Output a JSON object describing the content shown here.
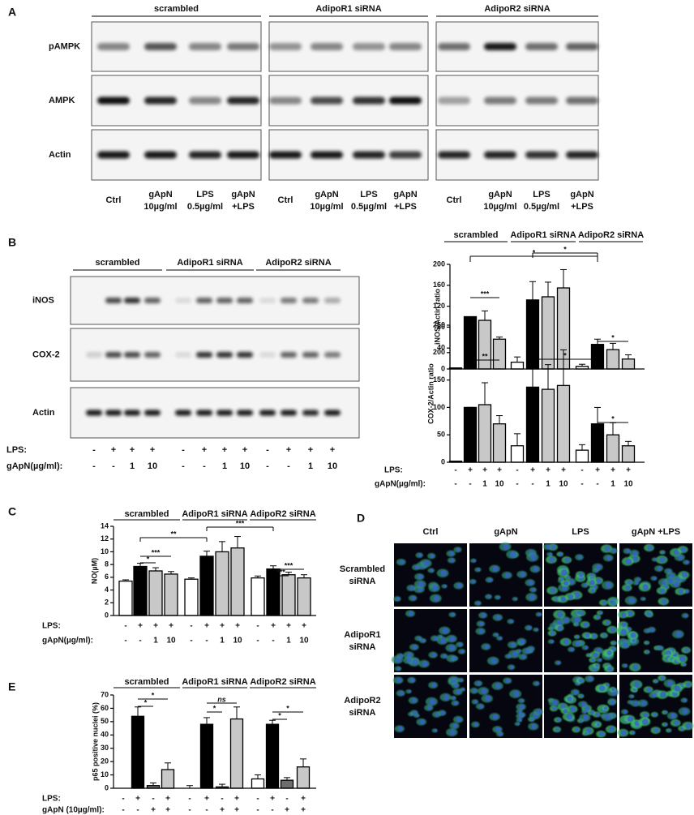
{
  "figure": {
    "panel_a": {
      "label": "A",
      "groups": [
        "scrambled",
        "AdipoR1 siRNA",
        "AdipoR2 siRNA"
      ],
      "rows": [
        "pAMPK",
        "AMPK",
        "Actin"
      ],
      "lanes": [
        [
          [
            "Ctrl"
          ],
          [
            "gApN",
            "10µg/ml"
          ],
          [
            "LPS",
            "0.5µg/ml"
          ],
          [
            "gApN",
            "+LPS"
          ]
        ],
        [
          [
            "Ctrl"
          ],
          [
            "gApN",
            "10µg/ml"
          ],
          [
            "LPS",
            "0.5µg/ml"
          ],
          [
            "gApN",
            "+LPS"
          ]
        ],
        [
          [
            "Ctrl"
          ],
          [
            "gApN",
            "10µg/ml"
          ],
          [
            "LPS",
            "0.5µg/ml"
          ],
          [
            "gApN",
            "+LPS"
          ]
        ]
      ]
    },
    "panel_b": {
      "label": "B",
      "groups": [
        "scrambled",
        "AdipoR1 siRNA",
        "AdipoR2 siRNA"
      ],
      "rows": [
        "iNOS",
        "COX-2",
        "Actin"
      ],
      "treatments": [
        {
          "name": "LPS:",
          "marks": [
            "-",
            "+",
            "+",
            "+",
            "-",
            "+",
            "+",
            "+",
            "-",
            "+",
            "+",
            "+"
          ]
        },
        {
          "name": "gApN(µg/ml):",
          "marks": [
            "-",
            "-",
            "1",
            "10",
            "-",
            "-",
            "1",
            "10",
            "-",
            "-",
            "1",
            "10"
          ]
        }
      ]
    },
    "panel_d": {
      "label": "D",
      "columns": [
        "Ctrl",
        "gApN",
        "LPS",
        "gApN +LPS"
      ],
      "rows": [
        [
          "Scrambled",
          "siRNA"
        ],
        [
          "AdipoR1",
          "siRNA"
        ],
        [
          "AdipoR2",
          "siRNA"
        ]
      ]
    }
  },
  "chart_data": [
    {
      "type": "bar",
      "y_label": "iNOS/Actin ratio",
      "groups": [
        "scrambled",
        "AdipoR1 siRNA",
        "AdipoR2 siRNA"
      ],
      "categories": [
        null,
        null,
        null,
        null,
        null,
        null,
        null,
        null,
        null,
        null,
        null,
        null
      ],
      "values": [
        2,
        100,
        93,
        57,
        13,
        132,
        138,
        155,
        5,
        47,
        37,
        19
      ],
      "errors": [
        0,
        0,
        18,
        4,
        10,
        35,
        28,
        35,
        4,
        10,
        12,
        8
      ],
      "colors": [
        "#ffffff",
        "#000000",
        "#c8c8c8",
        "#c8c8c8",
        "#ffffff",
        "#000000",
        "#c8c8c8",
        "#c8c8c8",
        "#ffffff",
        "#000000",
        "#c8c8c8",
        "#c8c8c8"
      ],
      "ylim": [
        0,
        200
      ],
      "yticks": [
        0,
        40,
        80,
        120,
        160,
        200
      ],
      "annotations": [
        "***",
        "*",
        "*",
        "*"
      ]
    },
    {
      "type": "bar",
      "y_label": "COX-2/Actin ratio",
      "categories": [
        null,
        null,
        null,
        null,
        null,
        null,
        null,
        null,
        null,
        null,
        null,
        null
      ],
      "values": [
        2,
        100,
        105,
        70,
        30,
        137,
        133,
        140,
        22,
        70,
        50,
        30
      ],
      "errors": [
        0,
        0,
        40,
        15,
        22,
        45,
        45,
        65,
        10,
        30,
        22,
        8
      ],
      "colors": [
        "#ffffff",
        "#000000",
        "#c8c8c8",
        "#c8c8c8",
        "#ffffff",
        "#000000",
        "#c8c8c8",
        "#c8c8c8",
        "#ffffff",
        "#000000",
        "#c8c8c8",
        "#c8c8c8"
      ],
      "ylim": [
        0,
        250
      ],
      "yticks": [
        0,
        50,
        100,
        150,
        200,
        250
      ],
      "annotations": [
        "**",
        "*",
        "*"
      ],
      "treatments": [
        {
          "name": "LPS:",
          "marks": [
            "-",
            "+",
            "+",
            "+",
            "-",
            "+",
            "+",
            "+",
            "-",
            "+",
            "+",
            "+"
          ]
        },
        {
          "name": "gApN(µg/ml):",
          "marks": [
            "-",
            "-",
            "1",
            "10",
            "-",
            "-",
            "1",
            "10",
            "-",
            "-",
            "1",
            "10"
          ]
        }
      ]
    },
    {
      "type": "bar",
      "panel": "C",
      "y_label": "NO(µM)",
      "groups": [
        "scrambled",
        "AdipoR1 siRNA",
        "AdipoR2 siRNA"
      ],
      "categories": [
        null,
        null,
        null,
        null,
        null,
        null,
        null,
        null,
        null,
        null,
        null,
        null
      ],
      "values": [
        5.4,
        7.7,
        7.0,
        6.5,
        5.7,
        9.3,
        10.0,
        10.6,
        5.9,
        7.3,
        6.4,
        5.9
      ],
      "errors": [
        0.2,
        0.5,
        0.5,
        0.4,
        0.2,
        0.8,
        1.6,
        1.8,
        0.3,
        0.5,
        0.4,
        0.5
      ],
      "colors": [
        "#ffffff",
        "#000000",
        "#c8c8c8",
        "#c8c8c8",
        "#ffffff",
        "#000000",
        "#c8c8c8",
        "#c8c8c8",
        "#ffffff",
        "#000000",
        "#c8c8c8",
        "#c8c8c8"
      ],
      "ylim": [
        0,
        14
      ],
      "yticks": [
        0,
        2,
        4,
        6,
        8,
        10,
        12,
        14
      ],
      "annotations": [
        "**",
        "***",
        "*",
        "***",
        "***",
        "***"
      ],
      "treatments": [
        {
          "name": "LPS:",
          "marks": [
            "-",
            "+",
            "+",
            "+",
            "-",
            "+",
            "+",
            "+",
            "-",
            "+",
            "+",
            "+"
          ]
        },
        {
          "name": "gApN(µg/ml):",
          "marks": [
            "-",
            "-",
            "1",
            "10",
            "-",
            "-",
            "1",
            "10",
            "-",
            "-",
            "1",
            "10"
          ]
        }
      ]
    },
    {
      "type": "bar",
      "panel": "E",
      "y_label": "p65 positive nuclei (%)",
      "groups": [
        "scrambled",
        "AdipoR1 siRNA",
        "AdipoR2 siRNA"
      ],
      "categories": [
        null,
        null,
        null,
        null,
        null,
        null,
        null,
        null,
        null,
        null,
        null,
        null
      ],
      "values": [
        0,
        54,
        2,
        14,
        0,
        48,
        1,
        52,
        7,
        48,
        6,
        16
      ],
      "errors": [
        0,
        7,
        2,
        5,
        2,
        5,
        2,
        9,
        3,
        3,
        2,
        6
      ],
      "colors": [
        "#ffffff",
        "#000000",
        "#6e6e6e",
        "#c8c8c8",
        "#ffffff",
        "#000000",
        "#6e6e6e",
        "#c8c8c8",
        "#ffffff",
        "#000000",
        "#6e6e6e",
        "#c8c8c8"
      ],
      "ylim": [
        0,
        70
      ],
      "yticks": [
        0,
        10,
        20,
        30,
        40,
        50,
        60,
        70
      ],
      "annotations": [
        "*",
        "*",
        "ns",
        "*",
        "*",
        "*"
      ],
      "treatments": [
        {
          "name": "LPS:",
          "marks": [
            "-",
            "+",
            "-",
            "+",
            "-",
            "+",
            "-",
            "+",
            "-",
            "+",
            "-",
            "+"
          ]
        },
        {
          "name": "gApN (10µg/ml):",
          "marks": [
            "-",
            "-",
            "+",
            "+",
            "-",
            "-",
            "+",
            "+",
            "-",
            "-",
            "+",
            "+"
          ]
        }
      ]
    }
  ]
}
